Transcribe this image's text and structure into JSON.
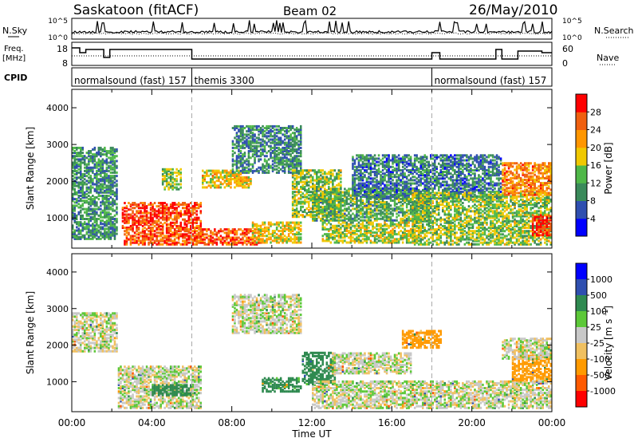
{
  "header": {
    "station": "Saskatoon (fitACF)",
    "beam": "Beam 02",
    "date": "26/May/2010"
  },
  "side_labels": {
    "nsky": "N.Sky",
    "nsearch": "N.Search",
    "freq_line1": "Freq.",
    "freq_line2": "[MHz]",
    "nave": "Nave",
    "cpid": "CPID"
  },
  "noise_ticks": {
    "left_top": "10^5",
    "left_bottom": "10^0",
    "right_top": "10^5",
    "right_bottom": "10^0"
  },
  "freq_ticks": {
    "left": [
      "18",
      "8"
    ],
    "right": [
      "60",
      "0"
    ]
  },
  "cpid_segments": [
    {
      "label": "normalsound (fast) 157",
      "start_h": 0,
      "end_h": 6
    },
    {
      "label": "themis 3300",
      "start_h": 6,
      "end_h": 18
    },
    {
      "label": "normalsound (fast) 157",
      "start_h": 18,
      "end_h": 24
    }
  ],
  "colors": {
    "power_scale": [
      "#0000ff",
      "#2f4fb0",
      "#3a8a5a",
      "#4fb848",
      "#f0c800",
      "#ff9600",
      "#f06010",
      "#ff0000"
    ],
    "velocity_scale": [
      "#ff0000",
      "#ff5a00",
      "#ff9a00",
      "#f0c060",
      "#c8c8c8",
      "#5cc838",
      "#2f8a50",
      "#2f4fb0",
      "#0000ff"
    ]
  },
  "chart_data": [
    {
      "type": "heatmap",
      "name": "power-panel",
      "xlabel": "",
      "ylabel": "Slant Range [km]",
      "yticks": [
        "1000",
        "2000",
        "3000",
        "4000"
      ],
      "xlim": [
        0,
        24
      ],
      "ylim": [
        180,
        4500
      ],
      "colorbar": {
        "label": "Power [dB]",
        "ticks": [
          "4",
          "8",
          "12",
          "16",
          "20",
          "24",
          "28"
        ],
        "range": [
          0,
          30
        ]
      },
      "regions": [
        {
          "h0": 0.0,
          "h1": 2.3,
          "r0": 400,
          "r1": 2900,
          "v": 10
        },
        {
          "h0": 2.5,
          "h1": 6.5,
          "r0": 700,
          "r1": 1400,
          "v": 26
        },
        {
          "h0": 4.5,
          "h1": 5.5,
          "r0": 1750,
          "r1": 2350,
          "v": 14
        },
        {
          "h0": 2.6,
          "h1": 9.5,
          "r0": 250,
          "r1": 700,
          "v": 25
        },
        {
          "h0": 6.5,
          "h1": 9.0,
          "r0": 1800,
          "r1": 2300,
          "v": 18
        },
        {
          "h0": 8.0,
          "h1": 11.5,
          "r0": 2200,
          "r1": 3500,
          "v": 9
        },
        {
          "h0": 9.0,
          "h1": 11.5,
          "r0": 300,
          "r1": 900,
          "v": 17
        },
        {
          "h0": 11.0,
          "h1": 13.5,
          "r0": 1000,
          "r1": 2300,
          "v": 14
        },
        {
          "h0": 12.0,
          "h1": 18.0,
          "r0": 900,
          "r1": 1800,
          "v": 12
        },
        {
          "h0": 12.5,
          "h1": 17.5,
          "r0": 300,
          "r1": 900,
          "v": 15
        },
        {
          "h0": 14.0,
          "h1": 21.5,
          "r0": 1500,
          "r1": 2700,
          "v": 8
        },
        {
          "h0": 17.0,
          "h1": 24.0,
          "r0": 250,
          "r1": 1700,
          "v": 14
        },
        {
          "h0": 21.5,
          "h1": 24.0,
          "r0": 1600,
          "r1": 2500,
          "v": 22
        },
        {
          "h0": 23.0,
          "h1": 24.0,
          "r0": 500,
          "r1": 1100,
          "v": 27
        }
      ]
    },
    {
      "type": "heatmap",
      "name": "velocity-panel",
      "xlabel": "Time UT",
      "ylabel": "Slant Range [km]",
      "yticks": [
        "1000",
        "2000",
        "3000",
        "4000"
      ],
      "xticks": [
        "00:00",
        "04:00",
        "08:00",
        "12:00",
        "16:00",
        "20:00",
        "00:00"
      ],
      "xlim": [
        0,
        24
      ],
      "ylim": [
        180,
        4500
      ],
      "colorbar": {
        "label": "Velocity [m s^-1]",
        "ticks": [
          "1000",
          "500",
          "100",
          "25",
          "-25",
          "-100",
          "-500",
          "-1000"
        ]
      },
      "regions": [
        {
          "h0": 0.0,
          "h1": 2.3,
          "r0": 1800,
          "r1": 2900,
          "v": 0
        },
        {
          "h0": 2.3,
          "h1": 6.5,
          "r0": 250,
          "r1": 1400,
          "v": 0
        },
        {
          "h0": 4.0,
          "h1": 6.0,
          "r0": 600,
          "r1": 900,
          "v": 180
        },
        {
          "h0": 8.0,
          "h1": 11.5,
          "r0": 2300,
          "r1": 3400,
          "v": 0
        },
        {
          "h0": 9.5,
          "h1": 11.5,
          "r0": 700,
          "r1": 1100,
          "v": 150
        },
        {
          "h0": 11.5,
          "h1": 13.2,
          "r0": 900,
          "r1": 1800,
          "v": 200
        },
        {
          "h0": 12.0,
          "h1": 24.0,
          "r0": 250,
          "r1": 1000,
          "v": 0
        },
        {
          "h0": 13.0,
          "h1": 17.0,
          "r0": 1200,
          "r1": 1800,
          "v": 0
        },
        {
          "h0": 16.5,
          "h1": 18.5,
          "r0": 1900,
          "r1": 2400,
          "v": -150
        },
        {
          "h0": 22.0,
          "h1": 24.0,
          "r0": 1000,
          "r1": 1800,
          "v": -150
        },
        {
          "h0": 21.5,
          "h1": 24.0,
          "r0": 1600,
          "r1": 2200,
          "v": 0
        }
      ]
    }
  ]
}
